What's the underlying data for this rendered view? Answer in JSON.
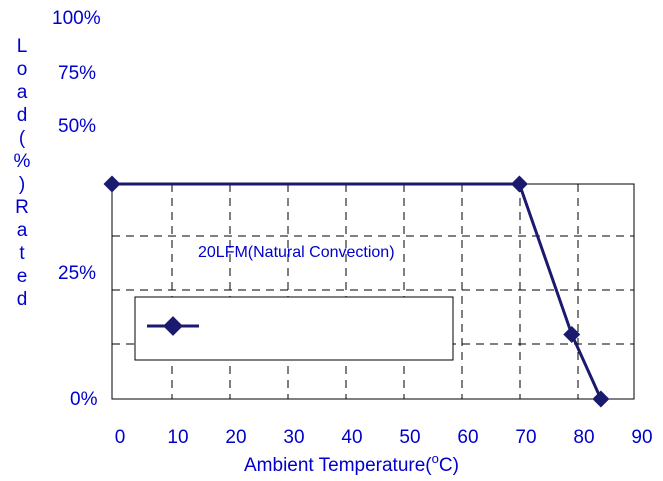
{
  "chart_data": {
    "type": "line",
    "xlabel": "Ambient Temperature(°C)",
    "xlabel_parts": {
      "before": "Ambient Temperature(",
      "superscript": "o",
      "after": "C)"
    },
    "ylabel": "Load (%) Rated",
    "xlim": [
      0,
      90
    ],
    "x_ticks": [
      "0",
      "10",
      "20",
      "30",
      "40",
      "50",
      "60",
      "70",
      "80",
      "90"
    ],
    "y_ticks": [
      "100%",
      "75%",
      "50%",
      "25%",
      "0%"
    ],
    "annotations": [
      "20LFM(Natural Convection)"
    ],
    "series": [
      {
        "x": [
          0,
          70,
          79,
          84
        ],
        "y": [
          100,
          100,
          30,
          0
        ]
      }
    ],
    "grid": true,
    "legend": "bottom-left",
    "colors": {
      "line": "#1a1a6e",
      "text": "#0000cc",
      "grid": "#000000"
    }
  }
}
